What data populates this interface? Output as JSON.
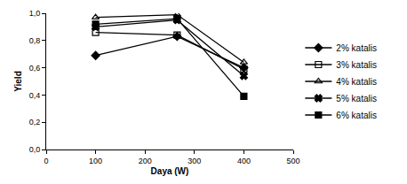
{
  "chart_data": {
    "type": "line",
    "x_label": "Daya (W)",
    "y_label": "Yield",
    "x": [
      100,
      265,
      400
    ],
    "series": [
      {
        "name": "2% katalis",
        "color": "#000000",
        "marker": "diamond",
        "line_style": "solid",
        "values": [
          0.69,
          0.83,
          0.6
        ]
      },
      {
        "name": "3% katalis",
        "color": "#000000",
        "marker": "square-open",
        "line_style": "solid",
        "values": [
          0.86,
          0.84,
          0.59
        ]
      },
      {
        "name": "4% katalis",
        "color": "#000000",
        "marker": "triangle-up-open",
        "line_style": "solid",
        "values": [
          0.97,
          0.99,
          0.64
        ]
      },
      {
        "name": "5% katalis",
        "color": "#000000",
        "marker": "x",
        "line_style": "solid",
        "values": [
          0.9,
          0.95,
          0.54
        ]
      },
      {
        "name": "6% katalis",
        "color": "#000000",
        "marker": "square",
        "line_style": "solid",
        "values": [
          0.92,
          0.96,
          0.39
        ]
      }
    ],
    "xlim": [
      0,
      500
    ],
    "xticks": [
      0,
      100,
      200,
      300,
      400,
      500
    ],
    "ylim": [
      0,
      1
    ],
    "yticks": [
      {
        "value": 0,
        "label": "0,0"
      },
      {
        "value": 0.2,
        "label": "0,2"
      },
      {
        "value": 0.4,
        "label": "0,4"
      },
      {
        "value": 0.6,
        "label": "0,6"
      },
      {
        "value": 0.8,
        "label": "0,8"
      },
      {
        "value": 1,
        "label": "1,0"
      }
    ],
    "grid": false,
    "legend": "right"
  }
}
